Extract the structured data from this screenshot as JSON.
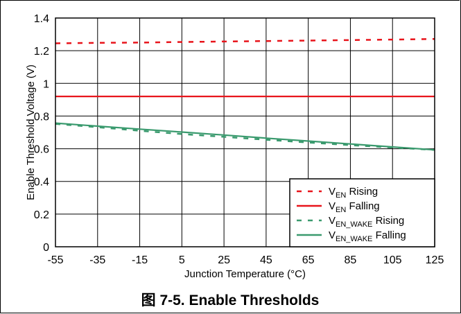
{
  "chart_data": {
    "type": "line",
    "title": "",
    "xlabel": "Junction Temperature (°C)",
    "ylabel": "Enable Threshold Voltage (V)",
    "xlim": [
      -55,
      125
    ],
    "ylim": [
      0,
      1.4
    ],
    "x_ticks": [
      -55,
      -35,
      -15,
      5,
      25,
      45,
      65,
      85,
      105,
      125
    ],
    "y_ticks": [
      0,
      0.2,
      0.4,
      0.6,
      0.8,
      1,
      1.2,
      1.4
    ],
    "y_tick_labels": [
      "0",
      "0.2",
      "0.4",
      "0.6",
      "0.8",
      "1",
      "1.2",
      "1.4"
    ],
    "grid": true,
    "legend_position": "bottom-right",
    "series": [
      {
        "name": "V_EN Rising",
        "label_main": "V",
        "label_sub": "EN",
        "label_rest": " Rising",
        "color": "#e8141b",
        "dash": "dashed",
        "x": [
          -55,
          -35,
          -15,
          5,
          25,
          45,
          65,
          85,
          105,
          125
        ],
        "y": [
          1.245,
          1.248,
          1.25,
          1.253,
          1.256,
          1.259,
          1.262,
          1.265,
          1.268,
          1.272
        ]
      },
      {
        "name": "V_EN Falling",
        "label_main": "V",
        "label_sub": "EN",
        "label_rest": " Falling",
        "color": "#e8141b",
        "dash": "solid",
        "x": [
          -55,
          -35,
          -15,
          5,
          25,
          45,
          65,
          85,
          105,
          125
        ],
        "y": [
          0.92,
          0.92,
          0.92,
          0.92,
          0.92,
          0.92,
          0.92,
          0.92,
          0.92,
          0.92
        ]
      },
      {
        "name": "V_EN_WAKE Rising",
        "label_main": "V",
        "label_sub": "EN_WAKE",
        "label_rest": " Rising",
        "color": "#3a9a6e",
        "dash": "dashed",
        "x": [
          -55,
          -35,
          -15,
          5,
          25,
          45,
          65,
          85,
          105,
          125
        ],
        "y": [
          0.752,
          0.732,
          0.71,
          0.69,
          0.673,
          0.655,
          0.638,
          0.622,
          0.607,
          0.593
        ]
      },
      {
        "name": "V_EN_WAKE Falling",
        "label_main": "V",
        "label_sub": "EN_WAKE",
        "label_rest": " Falling",
        "color": "#3a9a6e",
        "dash": "solid",
        "x": [
          -55,
          -35,
          -15,
          5,
          25,
          45,
          65,
          85,
          105,
          125
        ],
        "y": [
          0.757,
          0.738,
          0.72,
          0.702,
          0.684,
          0.665,
          0.647,
          0.629,
          0.611,
          0.593
        ]
      }
    ]
  },
  "caption": "图 7-5. Enable Thresholds"
}
